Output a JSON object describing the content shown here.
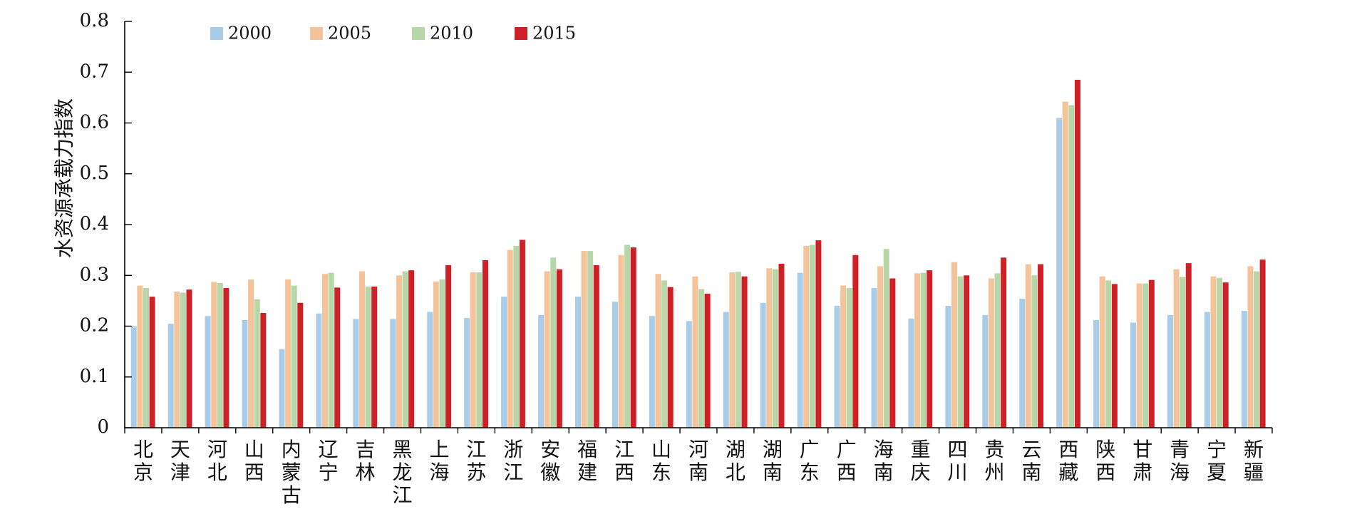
{
  "chart_data": {
    "type": "bar",
    "ylabel": "水资源承载力指数",
    "ylim": [
      0,
      0.8
    ],
    "yticks": [
      "0",
      "0.1",
      "0.2",
      "0.3",
      "0.4",
      "0.5",
      "0.6",
      "0.7",
      "0.8"
    ],
    "legend_position": "top-left",
    "categories": [
      "北京",
      "天津",
      "河北",
      "山西",
      "内蒙古",
      "辽宁",
      "吉林",
      "黑龙江",
      "上海",
      "江苏",
      "浙江",
      "安徽",
      "福建",
      "江西",
      "山东",
      "河南",
      "湖北",
      "湖南",
      "广东",
      "广西",
      "海南",
      "重庆",
      "四川",
      "贵州",
      "云南",
      "西藏",
      "陕西",
      "甘肃",
      "青海",
      "宁夏",
      "新疆"
    ],
    "series": [
      {
        "name": "2000",
        "color": "#a9cce9",
        "values": [
          0.2,
          0.205,
          0.22,
          0.212,
          0.155,
          0.225,
          0.214,
          0.214,
          0.228,
          0.216,
          0.258,
          0.222,
          0.258,
          0.248,
          0.22,
          0.21,
          0.228,
          0.246,
          0.305,
          0.24,
          0.275,
          0.215,
          0.24,
          0.222,
          0.254,
          0.61,
          0.212,
          0.207,
          0.222,
          0.228,
          0.23
        ]
      },
      {
        "name": "2005",
        "color": "#f4c39a",
        "values": [
          0.28,
          0.268,
          0.287,
          0.292,
          0.292,
          0.303,
          0.308,
          0.3,
          0.288,
          0.306,
          0.35,
          0.308,
          0.348,
          0.34,
          0.303,
          0.298,
          0.306,
          0.314,
          0.358,
          0.28,
          0.318,
          0.304,
          0.326,
          0.294,
          0.322,
          0.642,
          0.298,
          0.284,
          0.312,
          0.298,
          0.318
        ]
      },
      {
        "name": "2010",
        "color": "#b7d7a8",
        "values": [
          0.275,
          0.266,
          0.285,
          0.253,
          0.28,
          0.305,
          0.278,
          0.308,
          0.292,
          0.306,
          0.358,
          0.335,
          0.348,
          0.36,
          0.29,
          0.273,
          0.307,
          0.312,
          0.36,
          0.275,
          0.352,
          0.305,
          0.298,
          0.304,
          0.3,
          0.635,
          0.29,
          0.284,
          0.297,
          0.295,
          0.308
        ]
      },
      {
        "name": "2015",
        "color": "#cf2027",
        "values": [
          0.258,
          0.272,
          0.275,
          0.226,
          0.246,
          0.276,
          0.278,
          0.31,
          0.32,
          0.33,
          0.37,
          0.312,
          0.32,
          0.355,
          0.277,
          0.264,
          0.298,
          0.323,
          0.369,
          0.34,
          0.294,
          0.31,
          0.3,
          0.335,
          0.322,
          0.685,
          0.283,
          0.291,
          0.324,
          0.286,
          0.331
        ]
      }
    ]
  }
}
